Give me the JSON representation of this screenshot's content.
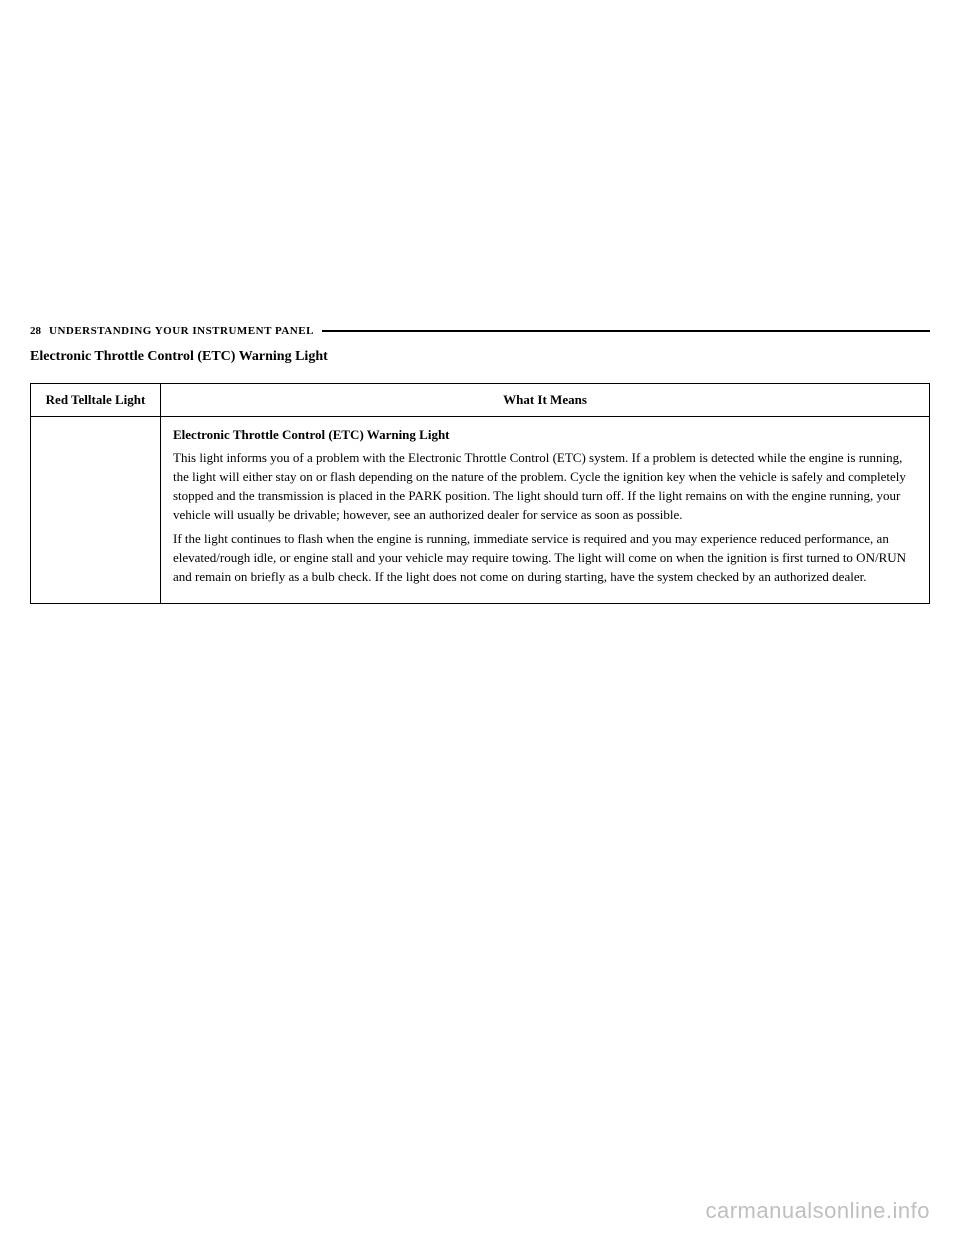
{
  "header": {
    "page_number": "28",
    "header_text": "UNDERSTANDING YOUR INSTRUMENT PANEL"
  },
  "section_title": "Electronic Throttle Control (ETC) Warning Light",
  "table": {
    "col1_header": "Red Telltale Light",
    "col2_header": "What It Means",
    "row": {
      "icon_cell": "",
      "title": "Electronic Throttle Control (ETC) Warning Light",
      "para1": "This light informs you of a problem with the Electronic Throttle Control (ETC) system. If a problem is detected while the engine is running, the light will either stay on or flash depending on the nature of the problem. Cycle the ignition key when the vehicle is safely and completely stopped and the transmission is placed in the PARK position. The light should turn off. If the light remains on with the engine running, your vehicle will usually be drivable; however, see an authorized dealer for service as soon as possible.",
      "para2": "If the light continues to flash when the engine is running, immediate service is required and you may experience reduced performance, an elevated/rough idle, or engine stall and your vehicle may require towing. The light will come on when the ignition is first turned to ON/RUN and remain on briefly as a bulb check. If the light does not come on during starting, have the system checked by an authorized dealer."
    }
  },
  "watermark": "carmanualsonline.info",
  "colors": {
    "text": "#000000",
    "background": "#ffffff",
    "watermark": "#bfbfbf",
    "border": "#000000"
  },
  "fonts": {
    "body_family": "Georgia, Times New Roman, serif",
    "watermark_family": "Arial, sans-serif",
    "header_size": 11,
    "section_title_size": 14,
    "table_size": 13,
    "watermark_size": 22
  }
}
